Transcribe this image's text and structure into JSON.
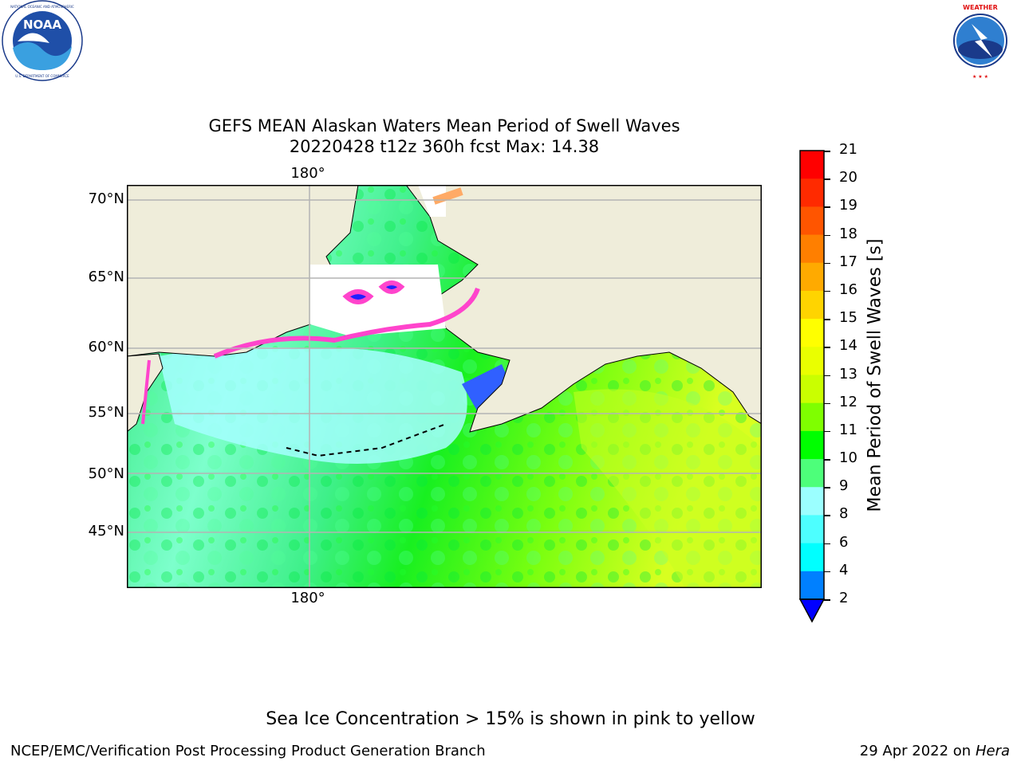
{
  "title": {
    "line1": "GEFS MEAN Alaskan Waters Mean Period of Swell Waves",
    "line2": "20220428 t12z 360h fcst   Max: 14.38"
  },
  "map": {
    "latitude_labels": [
      "70°N",
      "65°N",
      "60°N",
      "55°N",
      "50°N",
      "45°N"
    ],
    "longitude_label_top": "180°",
    "longitude_label_bottom": "180°",
    "land_color": "#efedda",
    "gridline_color": "#b4b4b4"
  },
  "colorbar": {
    "label": "Mean Period of Swell Waves [s]",
    "ticks": [
      "21",
      "20",
      "19",
      "18",
      "17",
      "16",
      "15",
      "14",
      "13",
      "12",
      "11",
      "10",
      "9",
      "8",
      "6",
      "4",
      "2"
    ],
    "colors_top_to_bottom": [
      "#ff0000",
      "#ff2a00",
      "#ff5500",
      "#ff7f00",
      "#ffaa00",
      "#ffd400",
      "#ffff00",
      "#eaff00",
      "#caff00",
      "#7fff00",
      "#00ff00",
      "#4dff7a",
      "#9bffff",
      "#4dffff",
      "#00ffff",
      "#0080ff",
      "#0000ff"
    ]
  },
  "logos": {
    "left": {
      "name": "NOAA",
      "ring_text": "NATIONAL OCEANIC AND ATMOSPHERIC ADMINISTRATION · U.S. DEPARTMENT OF COMMERCE"
    },
    "right": {
      "name": "National Weather Service",
      "ring_text": "NATIONAL WEATHER SERVICE"
    }
  },
  "notes": {
    "ice_note": "Sea Ice Concentration > 15% is shown in pink to yellow"
  },
  "footer": {
    "credit": "NCEP/EMC/Verification Post Processing Product Generation Branch",
    "date": "29 Apr 2022 on",
    "machine": "Hera"
  }
}
